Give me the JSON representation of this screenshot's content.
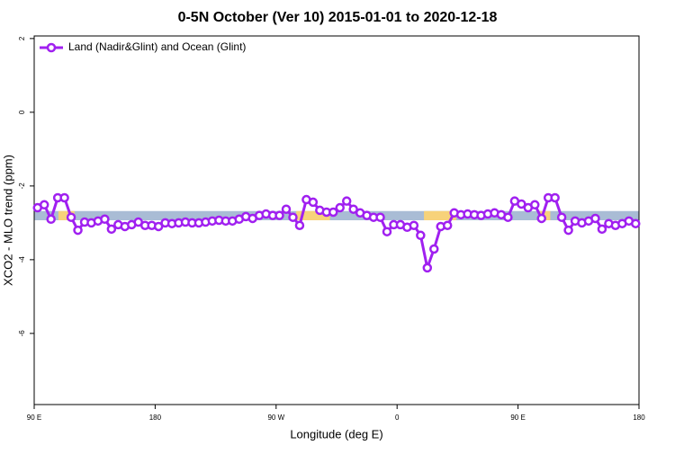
{
  "chart_data": {
    "type": "line",
    "title": "0-5N October (Ver 10)   2015-01-01 to 2020-12-18",
    "x_label": "Longitude (deg E)",
    "y_label": "XCO2 - MLO trend (ppm)",
    "xlim": [
      90,
      540
    ],
    "ylim": [
      -7.93,
      2.07
    ],
    "xticks": [
      {
        "value": 90,
        "label": "90 E"
      },
      180,
      {
        "value": 270,
        "label": "90 W"
      },
      {
        "value": 360,
        "label": "0"
      },
      {
        "value": 450,
        "label": "90 E"
      },
      {
        "value": 540,
        "label": "180"
      }
    ],
    "yticks": [
      -6,
      -4,
      -2,
      0,
      2
    ],
    "legend": "top-left",
    "band": {
      "x": [
        90,
        540
      ],
      "y": [
        -2.93,
        -2.68
      ],
      "color": "#a9bcd5"
    },
    "highlights": {
      "color": "#f7d27a",
      "x": [
        [
          108,
          120
        ],
        [
          285,
          310
        ],
        [
          380,
          404
        ],
        [
          466,
          474
        ]
      ]
    },
    "x": [
      92.5,
      97.5,
      102.5,
      107.5,
      112.5,
      117.5,
      122.5,
      127.5,
      132.5,
      137.5,
      142.5,
      147.5,
      152.5,
      157.5,
      162.5,
      167.5,
      172.5,
      177.5,
      182.5,
      187.5,
      192.5,
      197.5,
      202.5,
      207.5,
      212.5,
      217.5,
      222.5,
      227.5,
      232.5,
      237.5,
      242.5,
      247.5,
      252.5,
      257.5,
      262.5,
      267.5,
      272.5,
      277.5,
      282.5,
      287.5,
      292.5,
      297.5,
      302.5,
      307.5,
      312.5,
      317.5,
      322.5,
      327.5,
      332.5,
      337.5,
      342.5,
      347.5,
      352.5,
      357.5,
      362.5,
      367.5,
      372.5,
      377.5,
      382.5,
      387.5,
      392.5,
      397.5,
      402.5,
      407.5,
      412.5,
      417.5,
      422.5,
      427.5,
      432.5,
      437.5,
      442.5,
      447.5,
      452.5,
      457.5,
      462.5,
      467.5,
      472.5,
      477.5,
      482.5,
      487.5,
      492.5,
      497.5,
      502.5,
      507.5,
      512.5,
      517.5,
      522.5,
      527.5,
      532.5,
      537.5
    ],
    "series": [
      {
        "name": "Land (Nadir&Glint) and Ocean (Glint)",
        "color": "#a020f0",
        "values": [
          -2.59,
          -2.51,
          -2.9,
          -2.32,
          -2.32,
          -2.85,
          -3.2,
          -2.98,
          -3.0,
          -2.95,
          -2.9,
          -3.17,
          -3.05,
          -3.1,
          -3.05,
          -2.98,
          -3.07,
          -3.07,
          -3.1,
          -3.0,
          -3.02,
          -3.0,
          -2.98,
          -3.0,
          -3.0,
          -2.98,
          -2.95,
          -2.93,
          -2.95,
          -2.95,
          -2.9,
          -2.83,
          -2.88,
          -2.8,
          -2.76,
          -2.8,
          -2.8,
          -2.63,
          -2.85,
          -3.07,
          -2.37,
          -2.44,
          -2.66,
          -2.71,
          -2.71,
          -2.59,
          -2.41,
          -2.63,
          -2.73,
          -2.8,
          -2.85,
          -2.85,
          -3.24,
          -3.05,
          -3.05,
          -3.12,
          -3.07,
          -3.34,
          -4.22,
          -3.71,
          -3.1,
          -3.07,
          -2.73,
          -2.78,
          -2.76,
          -2.78,
          -2.8,
          -2.76,
          -2.73,
          -2.78,
          -2.85,
          -2.41,
          -2.49,
          -2.59,
          -2.51,
          -2.88,
          -2.32,
          -2.32,
          -2.85,
          -3.2,
          -2.95,
          -3.0,
          -2.95,
          -2.88,
          -3.17,
          -3.02,
          -3.07,
          -3.02,
          -2.95,
          -3.02
        ]
      }
    ]
  }
}
